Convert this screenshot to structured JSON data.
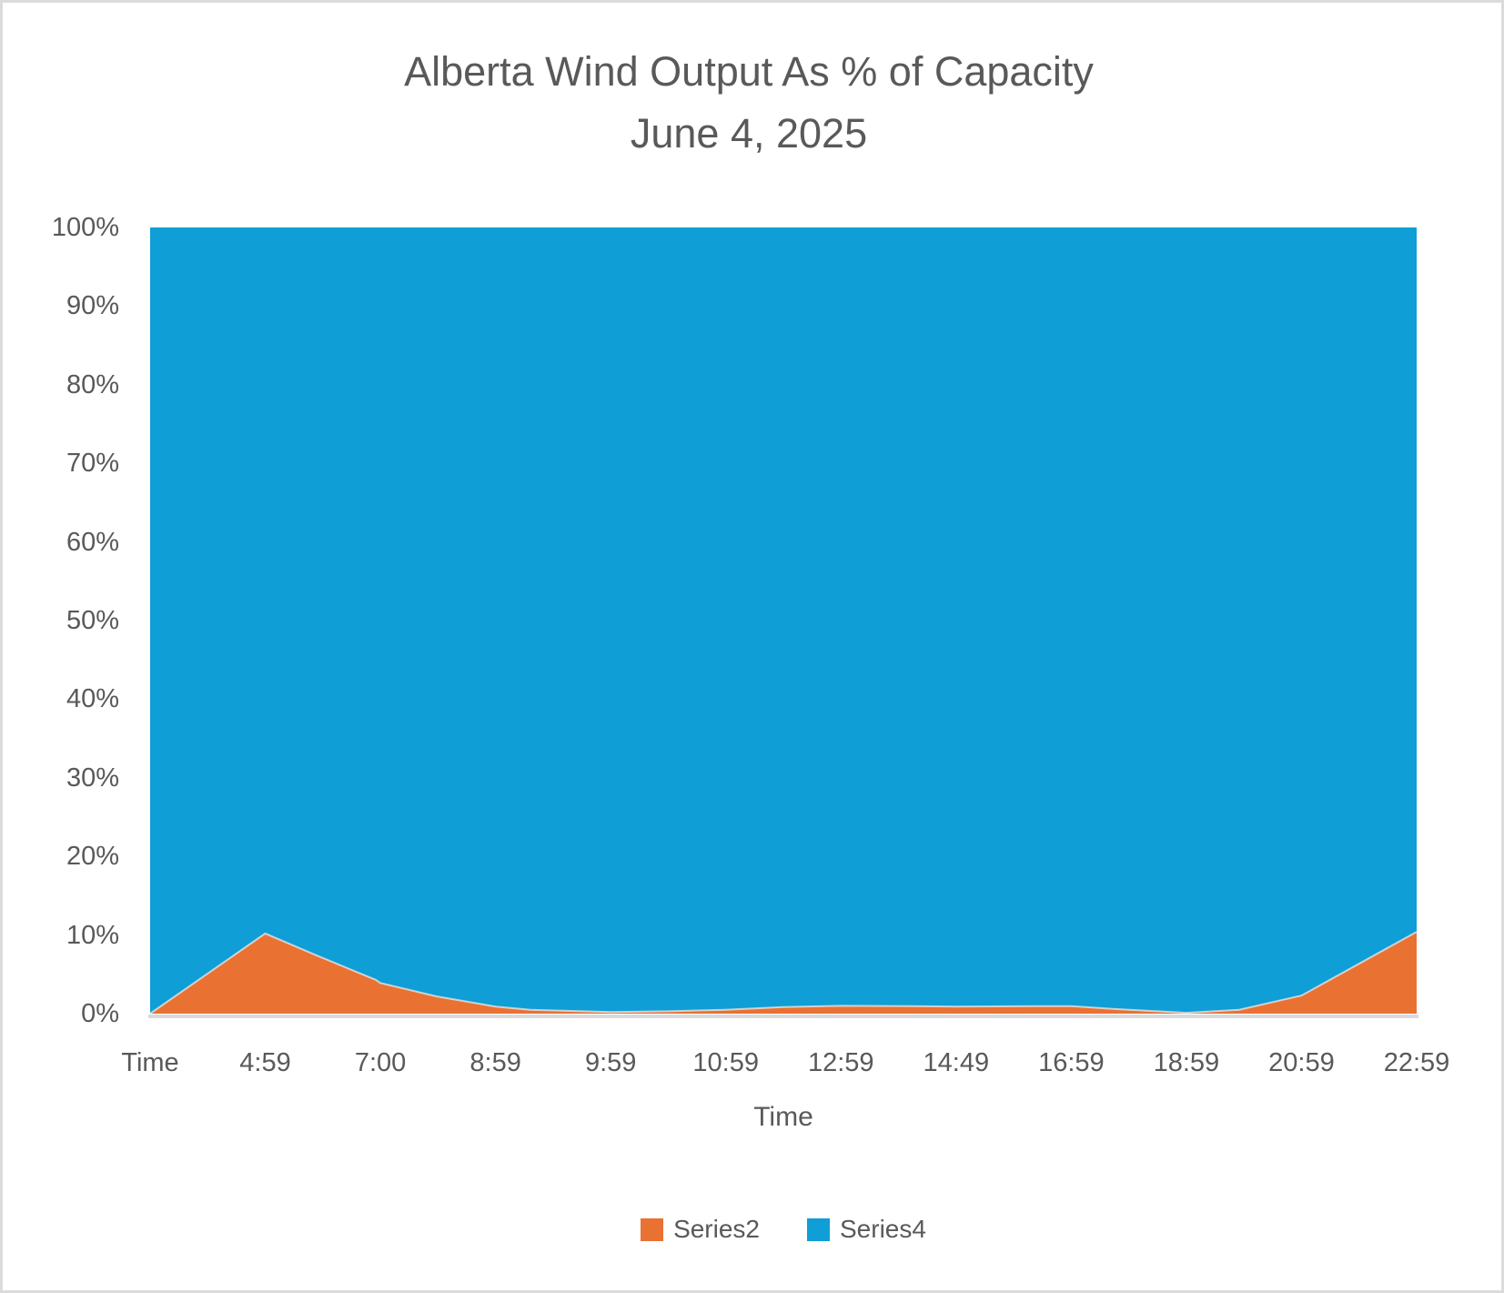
{
  "title": {
    "line1": "Alberta Wind Output As % of Capacity",
    "line2": "June 4, 2025"
  },
  "axes": {
    "y": {
      "tick_labels": [
        "0%",
        "10%",
        "20%",
        "30%",
        "40%",
        "50%",
        "60%",
        "70%",
        "80%",
        "90%",
        "100%"
      ]
    },
    "x": {
      "tick_labels": [
        "Time",
        "4:59",
        "7:00",
        "8:59",
        "9:59",
        "10:59",
        "12:59",
        "14:49",
        "16:59",
        "18:59",
        "20:59",
        "22:59"
      ],
      "title": "Time"
    }
  },
  "legend": {
    "items": [
      {
        "label": "Series2",
        "color": "#E97132"
      },
      {
        "label": "Series4",
        "color": "#0F9ED5"
      }
    ]
  },
  "colors": {
    "series2_orange": "#E97132",
    "series4_blue": "#0F9ED5",
    "axis_line": "#D9D9D9",
    "text": "#595959",
    "frame_border": "#DBDBDB"
  },
  "chart_data": {
    "type": "area",
    "stacked": true,
    "title": "Alberta Wind Output As % of Capacity",
    "subtitle": "June 4, 2025",
    "xlabel": "Time",
    "ylabel": "",
    "ylim": [
      0,
      100
    ],
    "y_tick_format": "percent",
    "grid": false,
    "legend_position": "bottom",
    "categories": [
      "Time",
      "4:59",
      "7:00",
      "8:59",
      "9:59",
      "10:59",
      "12:59",
      "14:49",
      "16:59",
      "18:59",
      "20:59",
      "22:59"
    ],
    "series": [
      {
        "name": "Series2",
        "color": "#E97132",
        "values": [
          0,
          10.2,
          4.0,
          0.9,
          0.2,
          0.5,
          1.0,
          0.9,
          1.0,
          0.2,
          2.3,
          10.4
        ]
      },
      {
        "name": "Series4",
        "color": "#0F9ED5",
        "values": [
          100,
          89.8,
          96.0,
          99.1,
          99.8,
          99.5,
          99.0,
          99.1,
          99.0,
          99.8,
          97.7,
          89.6
        ]
      }
    ],
    "series2_profile_x_fraction_value": [
      [
        0.0,
        0.0
      ],
      [
        0.0909,
        10.2
      ],
      [
        0.13,
        7.5
      ],
      [
        0.178,
        4.3
      ],
      [
        0.1818,
        3.9
      ],
      [
        0.226,
        2.2
      ],
      [
        0.2727,
        0.9
      ],
      [
        0.3,
        0.5
      ],
      [
        0.3636,
        0.2
      ],
      [
        0.41,
        0.3
      ],
      [
        0.4545,
        0.5
      ],
      [
        0.5,
        0.85
      ],
      [
        0.5455,
        1.0
      ],
      [
        0.6,
        0.95
      ],
      [
        0.6364,
        0.9
      ],
      [
        0.7,
        0.95
      ],
      [
        0.7273,
        0.95
      ],
      [
        0.76,
        0.6
      ],
      [
        0.8182,
        0.1
      ],
      [
        0.86,
        0.5
      ],
      [
        0.9091,
        2.3
      ],
      [
        1.0,
        10.4
      ]
    ]
  }
}
